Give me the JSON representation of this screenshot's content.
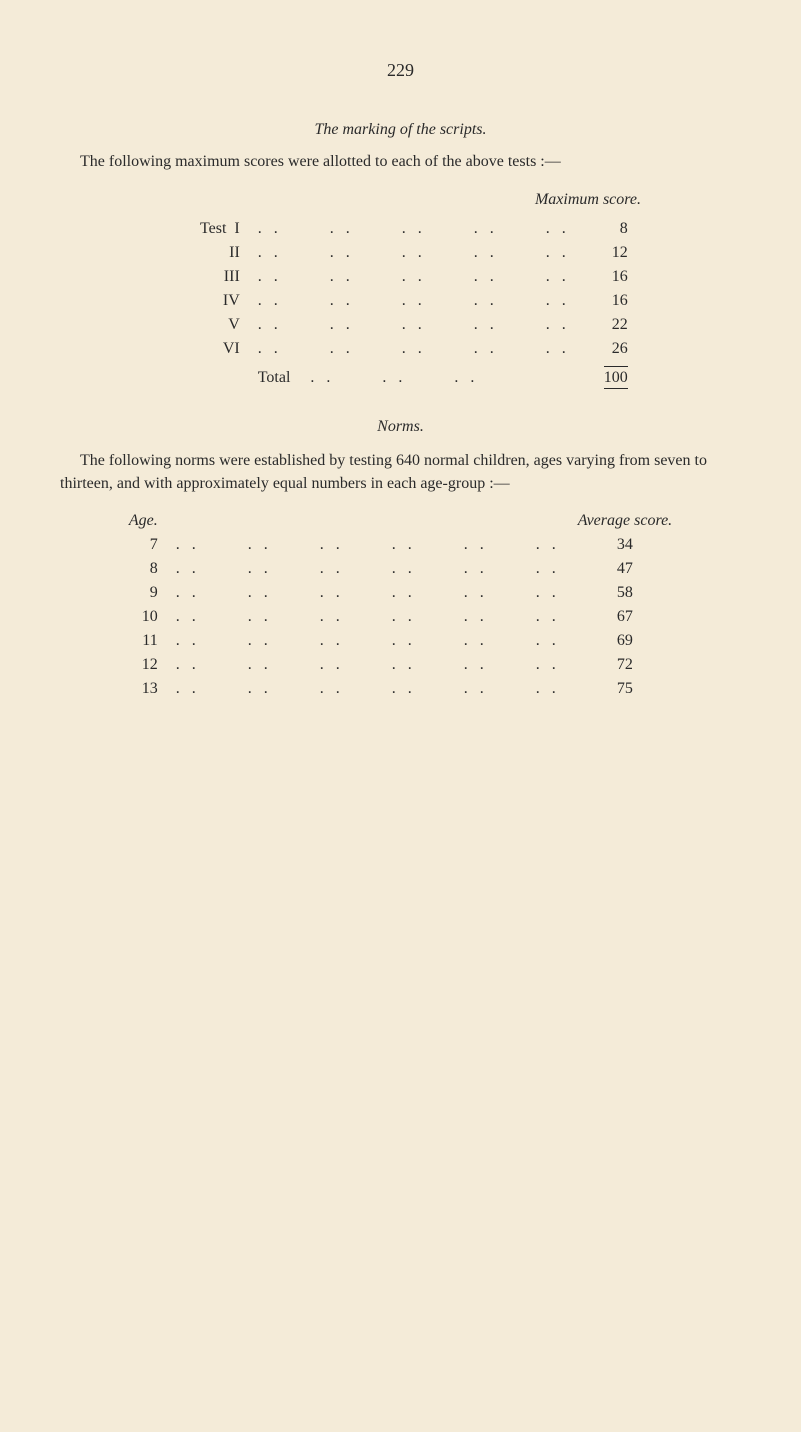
{
  "page_number": "229",
  "section1": {
    "title": "The marking of the scripts.",
    "intro": "The following maximum scores were allotted to each of the above tests :—",
    "score_header": "Maximum score.",
    "row_prefix": "Test",
    "dots": ". .      . .      . .      . .      . .",
    "rows": [
      {
        "label": "I",
        "value": "8"
      },
      {
        "label": "II",
        "value": "12"
      },
      {
        "label": "III",
        "value": "16"
      },
      {
        "label": "IV",
        "value": "16"
      },
      {
        "label": "V",
        "value": "22"
      },
      {
        "label": "VI",
        "value": "26"
      }
    ],
    "total_label": "Total",
    "total_dots": ". .      . .      . .",
    "total_value": "100"
  },
  "section2": {
    "title": "Norms.",
    "body": "The following norms were established by testing 640 normal children, ages varying from seven to thirteen, and with approximately equal numbers in each age-group :—",
    "age_header": "Age.",
    "score_header": "Average score.",
    "dots": ". .      . .      . .      . .      . .      . .",
    "rows": [
      {
        "label": "7",
        "value": "34"
      },
      {
        "label": "8",
        "value": "47"
      },
      {
        "label": "9",
        "value": "58"
      },
      {
        "label": "10",
        "value": "67"
      },
      {
        "label": "11",
        "value": "69"
      },
      {
        "label": "12",
        "value": "72"
      },
      {
        "label": "13",
        "value": "75"
      }
    ]
  },
  "colors": {
    "background": "#f4ebd8",
    "text": "#2a2a2a"
  }
}
